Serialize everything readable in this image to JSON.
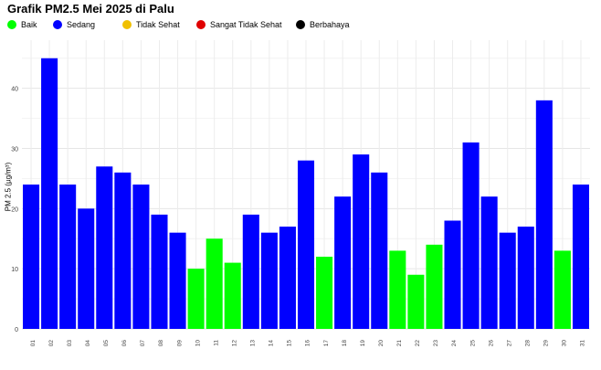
{
  "chart_data": {
    "type": "bar",
    "title": "Grafik PM2.5 Mei 2025 di Palu",
    "ylabel": "PM 2.5 (µg/m³)",
    "xlabel": "",
    "ylim": [
      0,
      48
    ],
    "yticks": [
      0,
      10,
      20,
      30,
      40
    ],
    "grid": true,
    "legend_position": "top-left",
    "legend": [
      {
        "label": "Baik",
        "color": "#00ff00"
      },
      {
        "label": "Sedang",
        "color": "#0000ff"
      },
      {
        "label": "Tidak Sehat",
        "color": "#f0c000"
      },
      {
        "label": "Sangat Tidak Sehat",
        "color": "#e00000"
      },
      {
        "label": "Berbahaya",
        "color": "#000000"
      }
    ],
    "categories": [
      "01",
      "02",
      "03",
      "04",
      "05",
      "06",
      "07",
      "08",
      "09",
      "10",
      "11",
      "12",
      "13",
      "14",
      "15",
      "16",
      "17",
      "18",
      "19",
      "20",
      "21",
      "22",
      "23",
      "24",
      "25",
      "26",
      "27",
      "28",
      "29",
      "30",
      "31"
    ],
    "values": [
      24,
      45,
      24,
      20,
      27,
      26,
      24,
      19,
      16,
      10,
      15,
      11,
      19,
      16,
      17,
      28,
      12,
      22,
      29,
      26,
      13,
      9,
      14,
      18,
      31,
      22,
      16,
      17,
      38,
      13,
      24
    ],
    "bar_categories": [
      "Sedang",
      "Sedang",
      "Sedang",
      "Sedang",
      "Sedang",
      "Sedang",
      "Sedang",
      "Sedang",
      "Sedang",
      "Baik",
      "Baik",
      "Baik",
      "Sedang",
      "Sedang",
      "Sedang",
      "Sedang",
      "Baik",
      "Sedang",
      "Sedang",
      "Sedang",
      "Baik",
      "Baik",
      "Baik",
      "Sedang",
      "Sedang",
      "Sedang",
      "Sedang",
      "Sedang",
      "Sedang",
      "Baik",
      "Sedang"
    ]
  }
}
